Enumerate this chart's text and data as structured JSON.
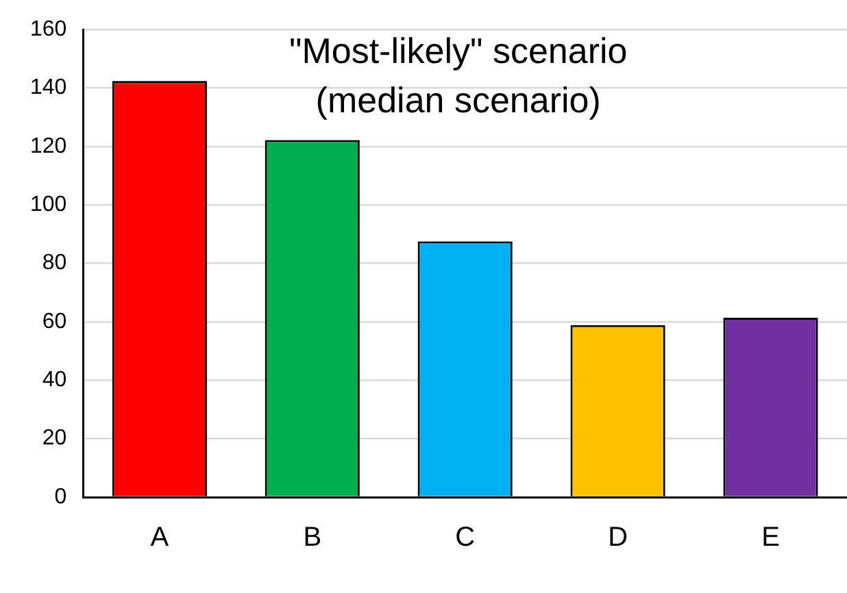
{
  "chart_data": {
    "type": "bar",
    "title": "\"Most-likely\" scenario\n(median scenario)",
    "categories": [
      "A",
      "B",
      "C",
      "D",
      "E"
    ],
    "values": [
      142.4,
      122.2,
      87.5,
      58.9,
      61.4
    ],
    "colors": [
      "#ff0000",
      "#00b050",
      "#00b0f0",
      "#ffc000",
      "#7030a0"
    ],
    "ylim": [
      0,
      160
    ],
    "yticks": [
      0,
      20,
      40,
      60,
      80,
      100,
      120,
      140,
      160
    ],
    "grid": "y",
    "legend": false
  }
}
